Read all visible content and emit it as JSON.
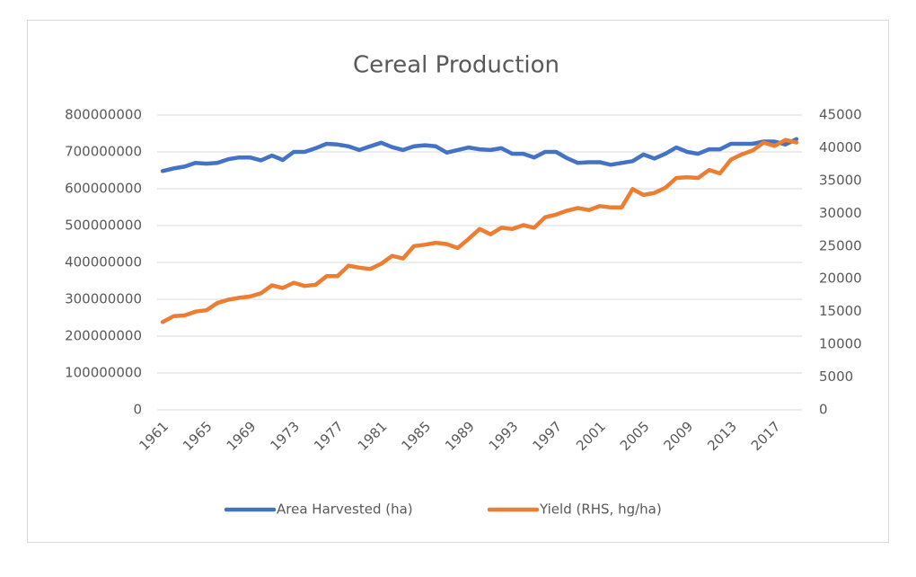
{
  "chart_data": {
    "type": "line",
    "title": "Cereal Production",
    "categories": [
      "1961",
      null,
      null,
      null,
      "1965",
      null,
      null,
      null,
      "1969",
      null,
      null,
      null,
      "1973",
      null,
      null,
      null,
      "1977",
      null,
      null,
      null,
      "1981",
      null,
      null,
      null,
      "1985",
      null,
      null,
      null,
      "1989",
      null,
      null,
      null,
      "1993",
      null,
      null,
      null,
      "1997",
      null,
      null,
      null,
      "2001",
      null,
      null,
      null,
      "2005",
      null,
      null,
      null,
      "2009",
      null,
      null,
      null,
      "2013",
      null,
      null,
      null,
      "2017",
      null,
      null
    ],
    "series": [
      {
        "name": "Area Harvested (ha)",
        "color": "#4472c4",
        "axis": "y",
        "values": [
          648000000,
          655000000,
          660000000,
          670000000,
          668000000,
          670000000,
          680000000,
          685000000,
          685000000,
          677000000,
          690000000,
          678000000,
          700000000,
          700000000,
          710000000,
          722000000,
          720000000,
          715000000,
          705000000,
          715000000,
          725000000,
          713000000,
          705000000,
          715000000,
          718000000,
          715000000,
          698000000,
          705000000,
          712000000,
          707000000,
          705000000,
          710000000,
          695000000,
          695000000,
          685000000,
          700000000,
          700000000,
          683000000,
          670000000,
          672000000,
          672000000,
          665000000,
          670000000,
          675000000,
          693000000,
          682000000,
          695000000,
          712000000,
          700000000,
          695000000,
          707000000,
          707000000,
          722000000,
          722000000,
          722000000,
          728000000,
          728000000,
          720000000,
          735000000
        ]
      },
      {
        "name": "Yield (RHS, hg/ha)",
        "color": "#ed7d31",
        "axis": "y2",
        "values": [
          13400,
          14300,
          14400,
          15000,
          15200,
          16300,
          16800,
          17100,
          17300,
          17800,
          19000,
          18600,
          19400,
          18900,
          19100,
          20400,
          20400,
          22000,
          21700,
          21500,
          22300,
          23500,
          23100,
          25000,
          25200,
          25500,
          25300,
          24700,
          26100,
          27600,
          26800,
          27800,
          27600,
          28200,
          27800,
          29400,
          29800,
          30400,
          30800,
          30500,
          31100,
          30900,
          30900,
          33700,
          32800,
          33100,
          33900,
          35400,
          35500,
          35400,
          36600,
          36100,
          38200,
          39000,
          39600,
          40800,
          40300,
          41200,
          40800
        ]
      }
    ],
    "ylim": [
      0,
      800000000
    ],
    "yticks": [
      0,
      100000000,
      200000000,
      300000000,
      400000000,
      500000000,
      600000000,
      700000000,
      800000000
    ],
    "y2lim": [
      0,
      45000
    ],
    "y2ticks": [
      0,
      5000,
      10000,
      15000,
      20000,
      25000,
      30000,
      35000,
      40000,
      45000
    ],
    "grid": true,
    "legend": "bottom"
  }
}
